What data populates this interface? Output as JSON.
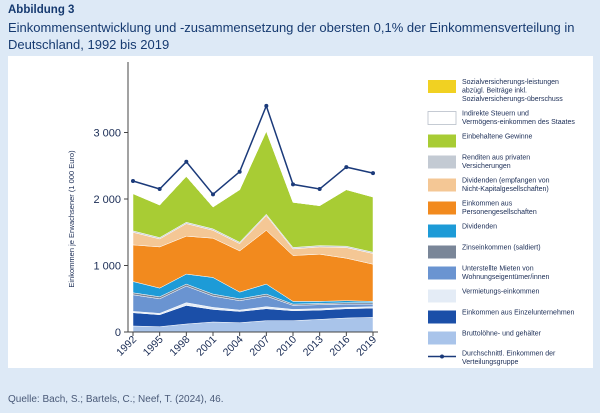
{
  "figure_label": "Abbildung 3",
  "figure_title": "Einkommensentwicklung und -zusammensetzung der obersten 0,1% der Einkommensverteilung in Deutschland, 1992 bis 2019",
  "source": "Quelle: Bach, S.; Bartels, C.; Neef, T. (2024), 46.",
  "chart_data": {
    "type": "area",
    "x": [
      "1992",
      "1995",
      "1998",
      "2001",
      "2004",
      "2007",
      "2010",
      "2013",
      "2016",
      "2019"
    ],
    "ylabel": "Einkommen je Erwachsener (1 000 Euro)",
    "ylim": [
      0,
      4000
    ],
    "yticks": [
      0,
      1000,
      2000,
      3000
    ],
    "ytick_labels": [
      "0",
      "1 000",
      "2 000",
      "3 000"
    ],
    "grid": false,
    "legend_position": "right",
    "series": [
      {
        "name": "Bruttolöhne- und gehälter",
        "color": "#a9c4ea",
        "values": [
          90,
          80,
          120,
          150,
          140,
          170,
          170,
          190,
          210,
          220
        ]
      },
      {
        "name": "Einkommen aus Einzelunternehmen",
        "color": "#1b4fa8",
        "values": [
          200,
          180,
          280,
          190,
          170,
          180,
          150,
          140,
          140,
          140
        ]
      },
      {
        "name": "Vermietungs-einkommen",
        "color": "#e4ecf6",
        "values": [
          20,
          20,
          40,
          30,
          20,
          30,
          20,
          20,
          20,
          20
        ]
      },
      {
        "name": "Unterstellte Mieten von Wohnungseigentümer/innen",
        "color": "#6a94d1",
        "values": [
          250,
          220,
          250,
          170,
          140,
          160,
          60,
          60,
          50,
          40
        ]
      },
      {
        "name": "Zinseinkommen (saldiert)",
        "color": "#7a8698",
        "values": [
          30,
          30,
          30,
          30,
          30,
          30,
          20,
          20,
          20,
          20
        ]
      },
      {
        "name": "Dividenden",
        "color": "#1d9bd7",
        "values": [
          170,
          130,
          150,
          250,
          100,
          150,
          40,
          30,
          30,
          20
        ]
      },
      {
        "name": "Einkommen aus Personengesellschaften",
        "color": "#f28a1e",
        "values": [
          550,
          620,
          570,
          590,
          620,
          810,
          690,
          710,
          640,
          560
        ]
      },
      {
        "name": "Dividenden (empfangen von Nicht-Kapitalgesellschaften)",
        "color": "#f4c795",
        "values": [
          190,
          120,
          190,
          120,
          110,
          220,
          100,
          110,
          160,
          160
        ]
      },
      {
        "name": "Renditen aus privaten Versicherungen",
        "color": "#c3cad3",
        "values": [
          20,
          20,
          20,
          20,
          20,
          20,
          20,
          20,
          20,
          20
        ]
      },
      {
        "name": "Einbehaltene Gewinne",
        "color": "#a8cc34",
        "values": [
          560,
          490,
          690,
          330,
          790,
          1250,
          680,
          600,
          850,
          830
        ]
      },
      {
        "name": "Indirekte Steuern und Vermögens-einkommen des Staates",
        "color": "#ffffff",
        "values": [
          0,
          0,
          0,
          0,
          0,
          0,
          0,
          0,
          0,
          0
        ]
      },
      {
        "name": "Sozialversicherungs-leistungen abzügl. Beiträge inkl. Sozialversicherungs-überschuss",
        "color": "#f1d122",
        "values": [
          0,
          0,
          0,
          0,
          0,
          0,
          0,
          0,
          0,
          0
        ]
      }
    ],
    "line": {
      "name": "Durchschnittl. Einkommen der Verteilungsgruppe",
      "color": "#1b3a7a",
      "values": [
        2270,
        2150,
        2560,
        2070,
        2410,
        3400,
        2220,
        2150,
        2480,
        2390
      ]
    }
  }
}
